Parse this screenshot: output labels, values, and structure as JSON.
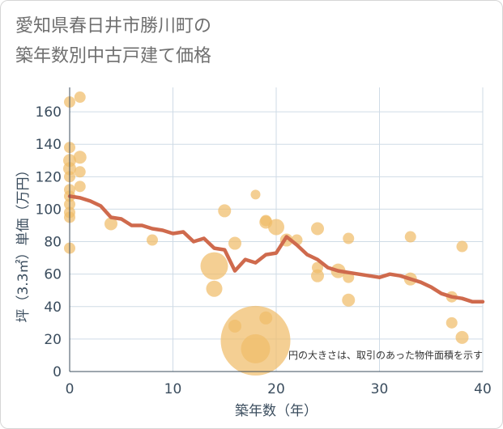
{
  "chart_data": {
    "type": "scatter",
    "title": [
      "愛知県春日井市勝川町の",
      "築年数別中古戸建て価格"
    ],
    "xlabel": "築年数（年）",
    "ylabel": "坪（3.3㎡）単価（万円）",
    "xlim": [
      0,
      40
    ],
    "ylim": [
      0,
      175
    ],
    "xticks": [
      0,
      10,
      20,
      30,
      40
    ],
    "yticks": [
      0,
      20,
      40,
      60,
      80,
      100,
      120,
      140,
      160
    ],
    "grid": true,
    "note": "円の大きさは、取引のあった物件面積を示す",
    "colors": {
      "bubble": "#f0bd6a",
      "line": "#cf6a4d",
      "grid": "#cfdbe6",
      "axis_text": "#3b4d5e"
    },
    "points": [
      {
        "x": 0,
        "y": 166,
        "s": 7
      },
      {
        "x": 1,
        "y": 169,
        "s": 7
      },
      {
        "x": 0,
        "y": 138,
        "s": 7
      },
      {
        "x": 1,
        "y": 132,
        "s": 8
      },
      {
        "x": 0,
        "y": 130,
        "s": 8
      },
      {
        "x": 0,
        "y": 125,
        "s": 8
      },
      {
        "x": 1,
        "y": 123,
        "s": 7
      },
      {
        "x": 0,
        "y": 120,
        "s": 7
      },
      {
        "x": 1,
        "y": 114,
        "s": 7
      },
      {
        "x": 0,
        "y": 112,
        "s": 7
      },
      {
        "x": 0,
        "y": 108,
        "s": 7
      },
      {
        "x": 0,
        "y": 103,
        "s": 7
      },
      {
        "x": 0,
        "y": 98,
        "s": 7
      },
      {
        "x": 0,
        "y": 95,
        "s": 7
      },
      {
        "x": 0,
        "y": 76,
        "s": 7
      },
      {
        "x": 4,
        "y": 91,
        "s": 8
      },
      {
        "x": 8,
        "y": 81,
        "s": 7
      },
      {
        "x": 14,
        "y": 65,
        "s": 17
      },
      {
        "x": 14,
        "y": 51,
        "s": 10
      },
      {
        "x": 15,
        "y": 99,
        "s": 8
      },
      {
        "x": 16,
        "y": 79,
        "s": 8
      },
      {
        "x": 16,
        "y": 28,
        "s": 8
      },
      {
        "x": 18,
        "y": 109,
        "s": 6
      },
      {
        "x": 18,
        "y": 19,
        "s": 43
      },
      {
        "x": 18,
        "y": 14,
        "s": 18
      },
      {
        "x": 19,
        "y": 93,
        "s": 7
      },
      {
        "x": 19,
        "y": 92,
        "s": 8
      },
      {
        "x": 19,
        "y": 33,
        "s": 8
      },
      {
        "x": 20,
        "y": 89,
        "s": 10
      },
      {
        "x": 21,
        "y": 81,
        "s": 8
      },
      {
        "x": 22,
        "y": 81,
        "s": 7
      },
      {
        "x": 24,
        "y": 88,
        "s": 8
      },
      {
        "x": 24,
        "y": 64,
        "s": 7
      },
      {
        "x": 24,
        "y": 59,
        "s": 8
      },
      {
        "x": 26,
        "y": 62,
        "s": 9
      },
      {
        "x": 27,
        "y": 82,
        "s": 7
      },
      {
        "x": 27,
        "y": 58,
        "s": 7
      },
      {
        "x": 27,
        "y": 44,
        "s": 8
      },
      {
        "x": 33,
        "y": 83,
        "s": 7
      },
      {
        "x": 33,
        "y": 57,
        "s": 8
      },
      {
        "x": 37,
        "y": 46,
        "s": 7
      },
      {
        "x": 37,
        "y": 30,
        "s": 7
      },
      {
        "x": 38,
        "y": 77,
        "s": 7
      },
      {
        "x": 38,
        "y": 21,
        "s": 8
      }
    ],
    "line": {
      "x": [
        0,
        1,
        2,
        3,
        4,
        5,
        6,
        7,
        8,
        9,
        10,
        11,
        12,
        13,
        14,
        15,
        16,
        17,
        18,
        19,
        20,
        21,
        22,
        23,
        24,
        25,
        26,
        27,
        28,
        29,
        30,
        31,
        32,
        33,
        34,
        35,
        36,
        37,
        38,
        39,
        40
      ],
      "y": [
        108,
        107,
        105,
        102,
        95,
        94,
        90,
        90,
        88,
        87,
        85,
        86,
        80,
        82,
        76,
        75,
        62,
        69,
        67,
        72,
        73,
        83,
        78,
        72,
        69,
        64,
        62,
        61,
        60,
        59,
        58,
        60,
        59,
        57,
        55,
        52,
        48,
        46,
        45,
        43,
        43
      ]
    }
  }
}
